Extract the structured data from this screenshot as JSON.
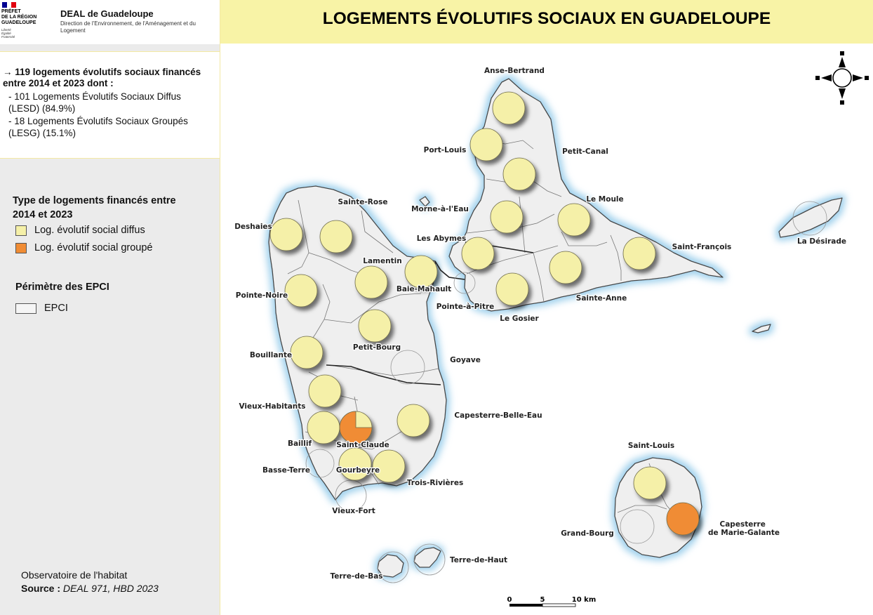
{
  "header": {
    "government_lines": [
      "PRÉFET",
      "DE LA RÉGION",
      "GUADELOUPE"
    ],
    "motto_lines": [
      "Liberté",
      "Égalité",
      "Fraternité"
    ],
    "org_title": "DEAL de Guadeloupe",
    "org_subtitle": "Direction de l'Environnement, de l'Aménagement et du Logement",
    "map_title": "LOGEMENTS ÉVOLUTIFS SOCIAUX EN GUADELOUPE"
  },
  "summary": {
    "main": "→ 119 logements évolutifs sociaux financés entre 2014 et 2023 dont :",
    "items": [
      "- 101 Logements Évolutifs Sociaux Diffus (LESD) (84.9%)",
      "- 18 Logements Évolutifs Sociaux Groupés (LESG) (15.1%)"
    ]
  },
  "legend": {
    "title": "Type de logements financés entre 2014 et 2023",
    "items": [
      {
        "label": "Log. évolutif social diffus",
        "color": "#f5f0a8"
      },
      {
        "label": "Log. évolutif social groupé",
        "color": "#f08c34"
      }
    ],
    "epci_title": "Périmètre des EPCI",
    "epci_label": "EPCI"
  },
  "footer": {
    "observatory": "Observatoire de l'habitat",
    "source_label": "Source : ",
    "source_value": "DEAL 971, HBD 2023"
  },
  "map": {
    "scale_labels": [
      "0",
      "5",
      "10 km"
    ],
    "places": [
      {
        "name": "Anse-Bertrand",
        "kind": "diffus"
      },
      {
        "name": "Port-Louis",
        "kind": "diffus"
      },
      {
        "name": "Petit-Canal",
        "kind": "diffus"
      },
      {
        "name": "Morne-à-l'Eau",
        "kind": "diffus"
      },
      {
        "name": "Le Moule",
        "kind": "diffus"
      },
      {
        "name": "Les Abymes",
        "kind": "diffus"
      },
      {
        "name": "Saint-François",
        "kind": "diffus"
      },
      {
        "name": "Sainte-Anne",
        "kind": "diffus"
      },
      {
        "name": "Le Gosier",
        "kind": "diffus"
      },
      {
        "name": "Pointe-à-Pitre",
        "kind": "none"
      },
      {
        "name": "Baie-Mahault",
        "kind": "diffus"
      },
      {
        "name": "Lamentin",
        "kind": "diffus"
      },
      {
        "name": "Sainte-Rose",
        "kind": "diffus"
      },
      {
        "name": "Deshaies",
        "kind": "diffus"
      },
      {
        "name": "Pointe-Noire",
        "kind": "diffus"
      },
      {
        "name": "Petit-Bourg",
        "kind": "diffus"
      },
      {
        "name": "Goyave",
        "kind": "none"
      },
      {
        "name": "Bouillante",
        "kind": "diffus"
      },
      {
        "name": "Vieux-Habitants",
        "kind": "diffus"
      },
      {
        "name": "Baillif",
        "kind": "diffus"
      },
      {
        "name": "Saint-Claude",
        "kind": "mixed",
        "groupe_share": 0.75
      },
      {
        "name": "Capesterre-Belle-Eau",
        "kind": "diffus"
      },
      {
        "name": "Basse-Terre",
        "kind": "none"
      },
      {
        "name": "Gourbeyre",
        "kind": "diffus"
      },
      {
        "name": "Trois-Rivières",
        "kind": "diffus"
      },
      {
        "name": "Vieux-Fort",
        "kind": "none"
      },
      {
        "name": "Terre-de-Bas",
        "kind": "none"
      },
      {
        "name": "Terre-de-Haut",
        "kind": "none"
      },
      {
        "name": "La Désirade",
        "kind": "none"
      },
      {
        "name": "Saint-Louis",
        "kind": "diffus"
      },
      {
        "name": "Grand-Bourg",
        "kind": "none"
      },
      {
        "name": "Capesterre de Marie-Galante",
        "kind": "groupe"
      }
    ]
  }
}
